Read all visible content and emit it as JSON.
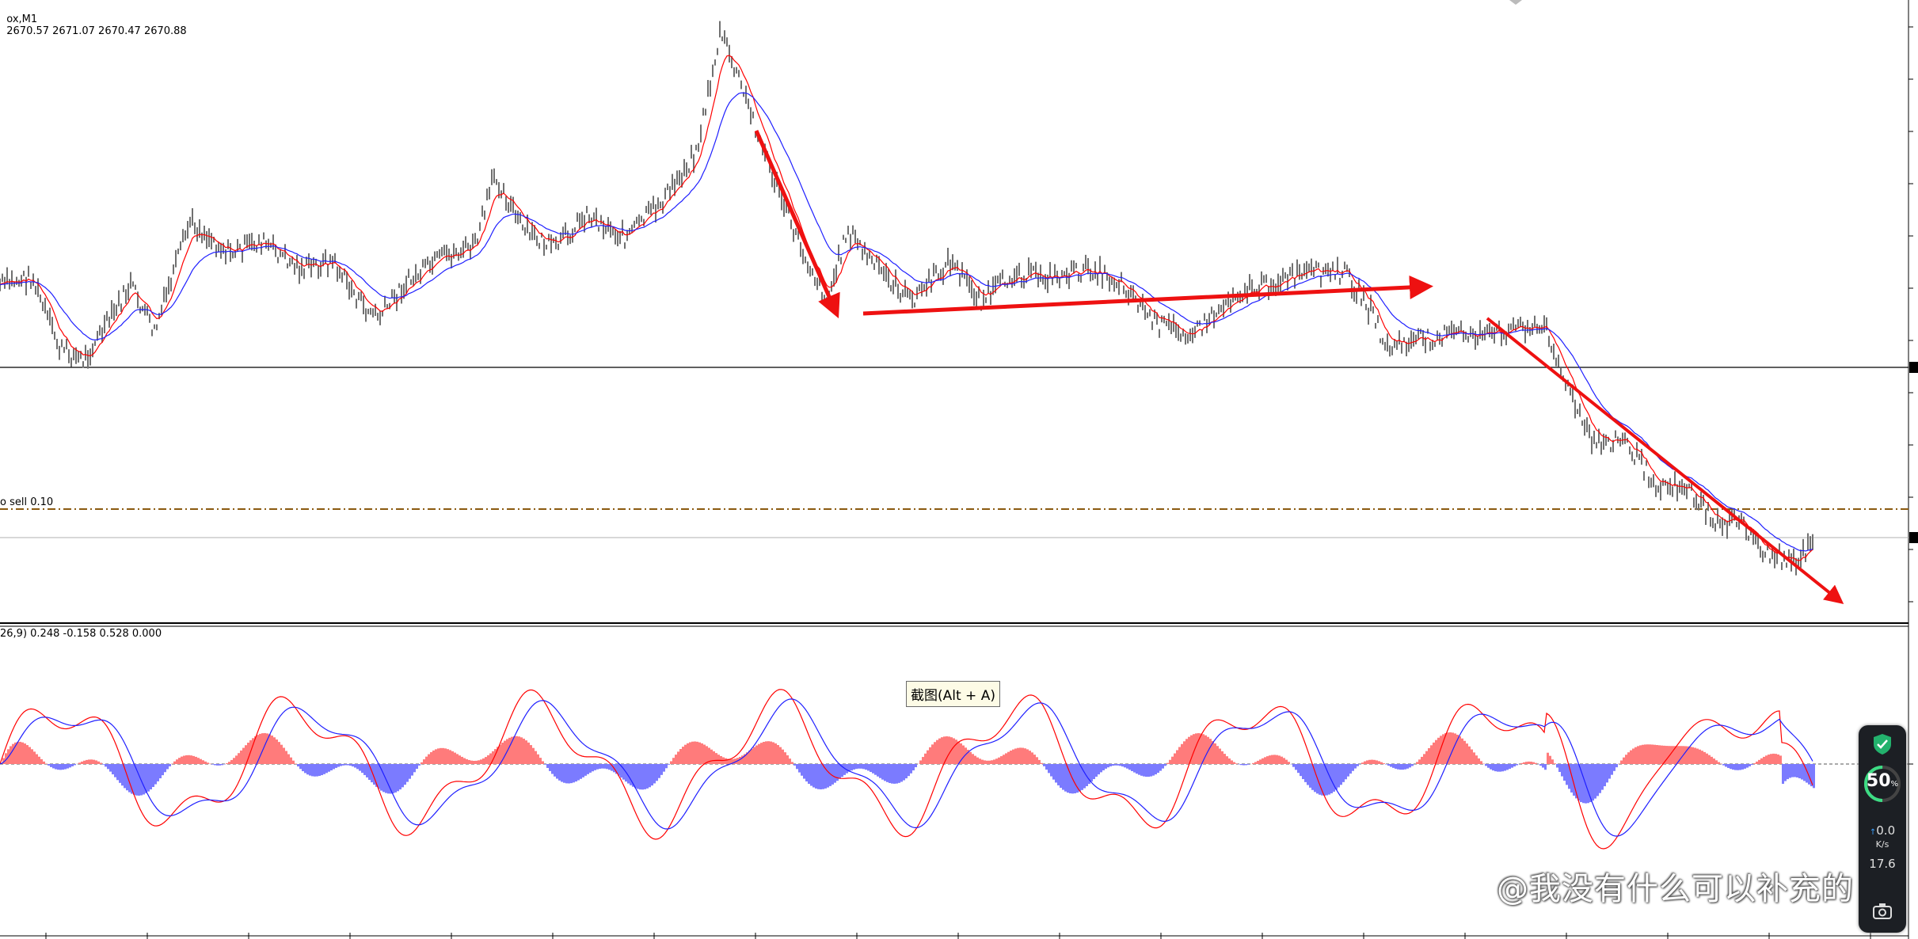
{
  "header": {
    "symbol_label": "ox,M1",
    "ohlc": "2670.57 2671.07 2670.47 2670.88"
  },
  "order_line": {
    "label": "o sell 0.10"
  },
  "macd_header": {
    "label": "26,9) 0.248 -0.158 0.528 0.000"
  },
  "tooltip": {
    "text": "截图(Alt + A)"
  },
  "watermark": {
    "text": "@我没有什么可以补充的"
  },
  "widget": {
    "percent": "50",
    "percent_unit": "%",
    "upload_speed": "0.0",
    "speed_unit": "K/s",
    "download_speed": "17.6",
    "icon_shield": "shield-check-icon",
    "icon_camera": "camera-icon"
  },
  "colors": {
    "price_bars": "#707070",
    "ma_fast": "#ff0000",
    "ma_slow": "#1f1fff",
    "trend_arrows": "#ee1111",
    "macd_positive": "#ff7b7b",
    "macd_negative": "#7b7bff",
    "order_line": "#8b5a10",
    "widget_ring": "#3ddc84"
  }
}
